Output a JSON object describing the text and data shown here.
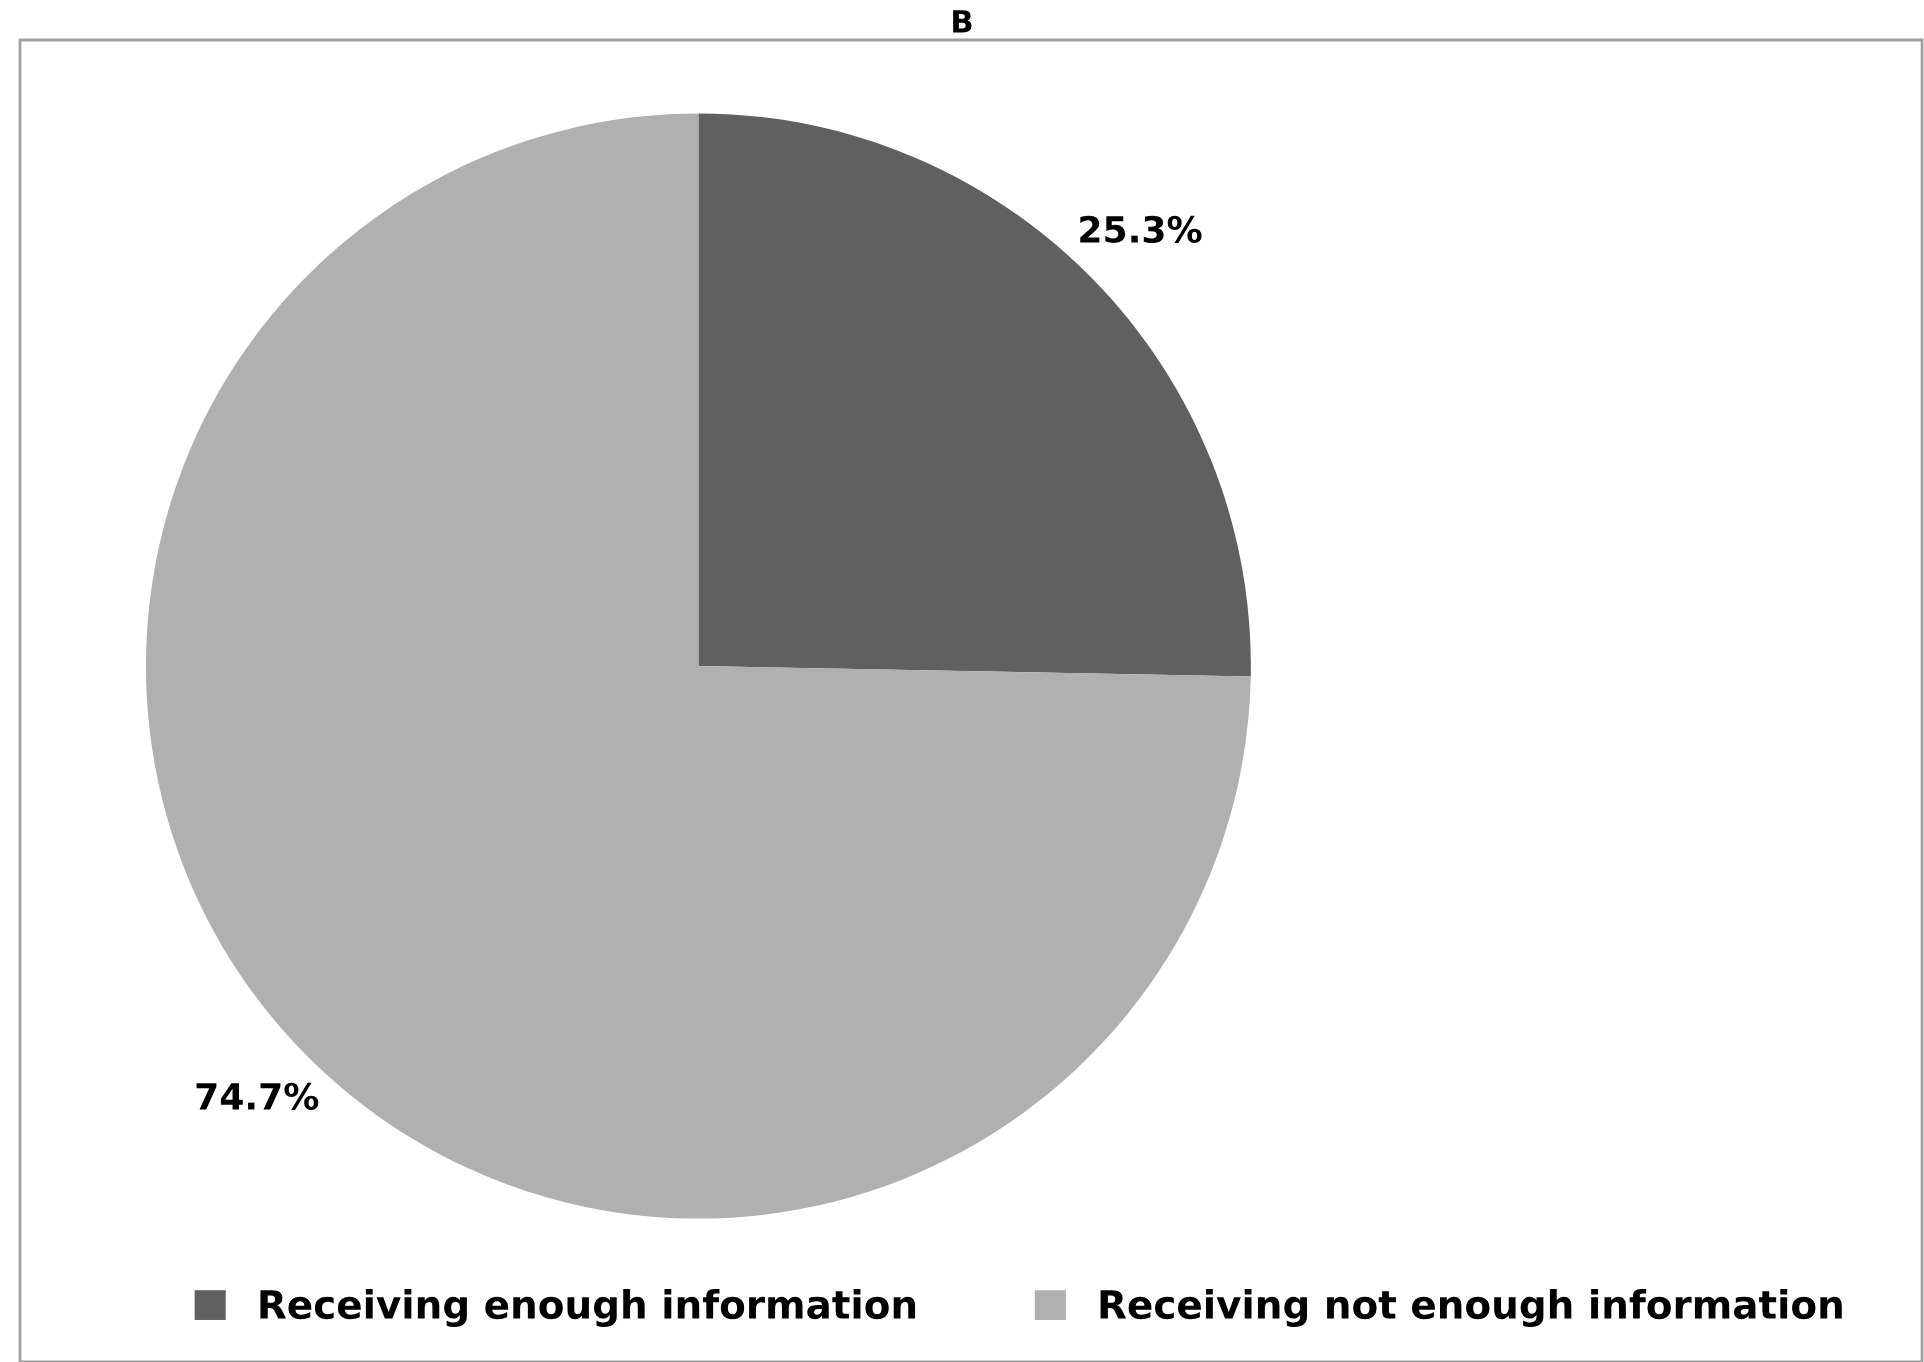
{
  "chart_data": {
    "type": "pie",
    "title": "B",
    "categories": [
      "Receiving enough information",
      "Receiving not enough information"
    ],
    "values": [
      25.3,
      74.7
    ],
    "colors": [
      "#606060",
      "#b0b0b0"
    ],
    "value_labels": [
      "25.3%",
      "74.7%"
    ],
    "legend": "bottom"
  }
}
